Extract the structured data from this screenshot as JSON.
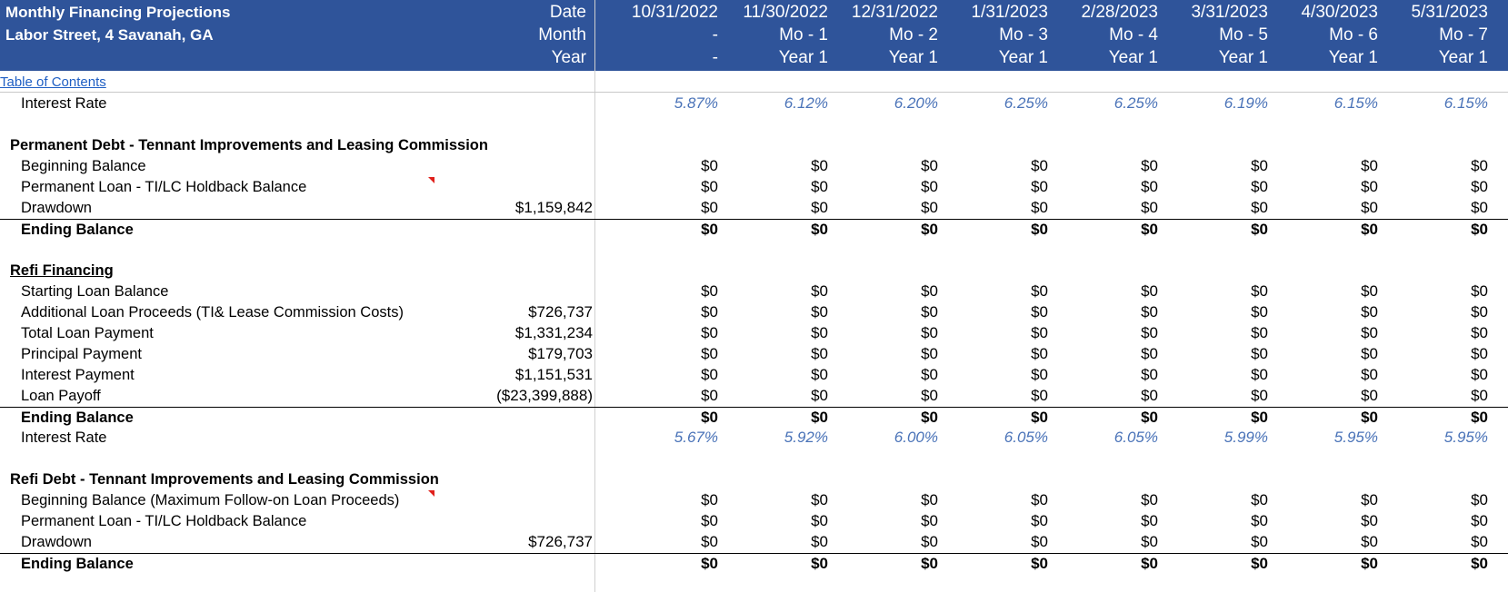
{
  "header": {
    "title": "Monthly Financing Projections",
    "address": "Labor Street, 4 Savanah, GA",
    "row_labels": [
      "Date",
      "Month",
      "Year"
    ],
    "columns": [
      {
        "date": "10/31/2022",
        "month": "-",
        "year": "-"
      },
      {
        "date": "11/30/2022",
        "month": "Mo - 1",
        "year": "Year 1"
      },
      {
        "date": "12/31/2022",
        "month": "Mo - 2",
        "year": "Year 1"
      },
      {
        "date": "1/31/2023",
        "month": "Mo - 3",
        "year": "Year 1"
      },
      {
        "date": "2/28/2023",
        "month": "Mo - 4",
        "year": "Year 1"
      },
      {
        "date": "3/31/2023",
        "month": "Mo - 5",
        "year": "Year 1"
      },
      {
        "date": "4/30/2023",
        "month": "Mo - 6",
        "year": "Year 1"
      },
      {
        "date": "5/31/2023",
        "month": "Mo - 7",
        "year": "Year 1"
      }
    ]
  },
  "toc_link": "Table of Contents",
  "rows": [
    {
      "label": "Interest Rate",
      "indent": 2,
      "style": "rate",
      "values": [
        "5.87%",
        "6.12%",
        "6.20%",
        "6.25%",
        "6.25%",
        "6.19%",
        "6.15%",
        "6.15%"
      ]
    },
    {
      "label": "",
      "indent": 2,
      "style": "blank",
      "values": []
    },
    {
      "label": "Permanent Debt - Tennant Improvements and Leasing Commission",
      "indent": 1,
      "style": "section",
      "values": []
    },
    {
      "label": "Beginning Balance",
      "indent": 2,
      "style": "normal",
      "values": [
        "$0",
        "$0",
        "$0",
        "$0",
        "$0",
        "$0",
        "$0",
        "$0"
      ]
    },
    {
      "label": "Permanent Loan - TI/LC Holdback Balance",
      "indent": 2,
      "style": "normal",
      "flag": true,
      "values": [
        "$0",
        "$0",
        "$0",
        "$0",
        "$0",
        "$0",
        "$0",
        "$0"
      ]
    },
    {
      "label": "Drawdown",
      "indent": 2,
      "style": "normal",
      "total": "$1,159,842",
      "values": [
        "$0",
        "$0",
        "$0",
        "$0",
        "$0",
        "$0",
        "$0",
        "$0"
      ]
    },
    {
      "label": "Ending Balance",
      "indent": 2,
      "style": "ending",
      "values": [
        "$0",
        "$0",
        "$0",
        "$0",
        "$0",
        "$0",
        "$0",
        "$0"
      ]
    },
    {
      "label": "",
      "indent": 2,
      "style": "blank",
      "values": []
    },
    {
      "label": "Refi Financing",
      "indent": 1,
      "style": "section-underline",
      "values": []
    },
    {
      "label": "Starting Loan Balance",
      "indent": 2,
      "style": "normal",
      "values": [
        "$0",
        "$0",
        "$0",
        "$0",
        "$0",
        "$0",
        "$0",
        "$0"
      ]
    },
    {
      "label": "Additional Loan Proceeds (TI& Lease Commission Costs)",
      "indent": 2,
      "style": "normal",
      "total": "$726,737",
      "values": [
        "$0",
        "$0",
        "$0",
        "$0",
        "$0",
        "$0",
        "$0",
        "$0"
      ]
    },
    {
      "label": "Total Loan Payment",
      "indent": 2,
      "style": "normal",
      "total": "$1,331,234",
      "values": [
        "$0",
        "$0",
        "$0",
        "$0",
        "$0",
        "$0",
        "$0",
        "$0"
      ]
    },
    {
      "label": "Principal Payment",
      "indent": 2,
      "style": "normal",
      "total": "$179,703",
      "values": [
        "$0",
        "$0",
        "$0",
        "$0",
        "$0",
        "$0",
        "$0",
        "$0"
      ]
    },
    {
      "label": "Interest Payment",
      "indent": 2,
      "style": "normal",
      "total": "$1,151,531",
      "values": [
        "$0",
        "$0",
        "$0",
        "$0",
        "$0",
        "$0",
        "$0",
        "$0"
      ]
    },
    {
      "label": "Loan Payoff",
      "indent": 2,
      "style": "normal",
      "total": "($23,399,888)",
      "values": [
        "$0",
        "$0",
        "$0",
        "$0",
        "$0",
        "$0",
        "$0",
        "$0"
      ]
    },
    {
      "label": "Ending Balance",
      "indent": 2,
      "style": "ending",
      "values": [
        "$0",
        "$0",
        "$0",
        "$0",
        "$0",
        "$0",
        "$0",
        "$0"
      ]
    },
    {
      "label": "Interest Rate",
      "indent": 2,
      "style": "rate",
      "values": [
        "5.67%",
        "5.92%",
        "6.00%",
        "6.05%",
        "6.05%",
        "5.99%",
        "5.95%",
        "5.95%"
      ]
    },
    {
      "label": "",
      "indent": 2,
      "style": "blank",
      "values": []
    },
    {
      "label": "Refi Debt - Tennant Improvements and Leasing Commission",
      "indent": 1,
      "style": "section",
      "values": []
    },
    {
      "label": "Beginning Balance (Maximum Follow-on Loan Proceeds)",
      "indent": 2,
      "style": "normal",
      "flag": true,
      "values": [
        "$0",
        "$0",
        "$0",
        "$0",
        "$0",
        "$0",
        "$0",
        "$0"
      ]
    },
    {
      "label": "Permanent Loan - TI/LC Holdback Balance",
      "indent": 2,
      "style": "normal",
      "values": [
        "$0",
        "$0",
        "$0",
        "$0",
        "$0",
        "$0",
        "$0",
        "$0"
      ]
    },
    {
      "label": "Drawdown",
      "indent": 2,
      "style": "normal",
      "total": "$726,737",
      "values": [
        "$0",
        "$0",
        "$0",
        "$0",
        "$0",
        "$0",
        "$0",
        "$0"
      ]
    },
    {
      "label": "Ending Balance",
      "indent": 2,
      "style": "ending",
      "values": [
        "$0",
        "$0",
        "$0",
        "$0",
        "$0",
        "$0",
        "$0",
        "$0"
      ]
    }
  ],
  "colors": {
    "header_bg": "#2f549a",
    "rate_text": "#4a73b8",
    "link": "#1f5fc4",
    "comment_flag": "#e0201b"
  }
}
